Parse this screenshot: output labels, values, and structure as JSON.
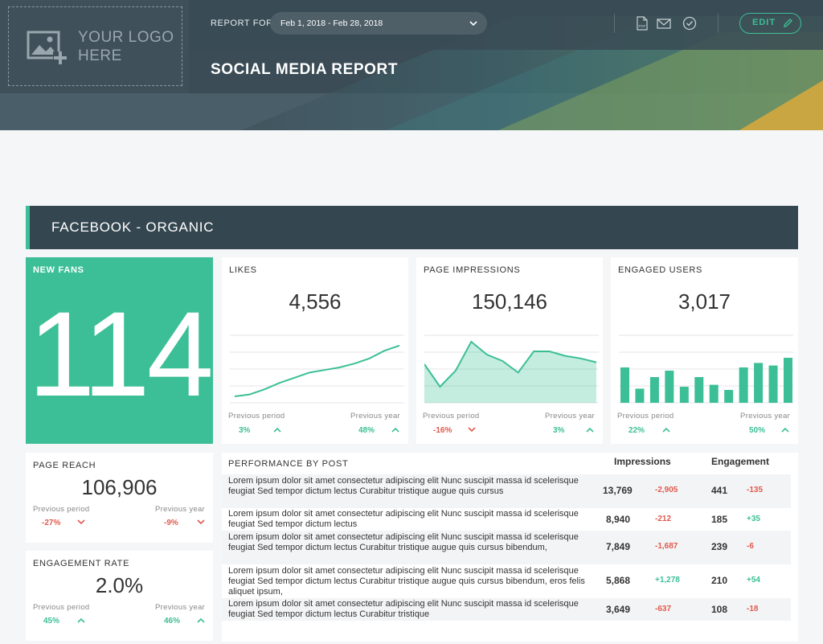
{
  "header": {
    "logo_text_line1": "YOUR LOGO",
    "logo_text_line2": "HERE",
    "report_for_label": "REPORT FOR",
    "date_range": "Feb 1, 2018 - Feb 28, 2018",
    "edit_label": "EDIT",
    "title": "SOCIAL MEDIA REPORT"
  },
  "section": {
    "title": "FACEBOOK - ORGANIC"
  },
  "cards": {
    "new_fans": {
      "label": "NEW FANS",
      "value": "114"
    },
    "likes": {
      "label": "LIKES",
      "value": "4,556",
      "prev_label": "Previous period",
      "prev_value": "3%",
      "year_label": "Previous year",
      "year_value": "48%"
    },
    "impressions": {
      "label": "PAGE IMPRESSIONS",
      "value": "150,146",
      "prev_label": "Previous period",
      "prev_value": "-16%",
      "year_label": "Previous year",
      "year_value": "3%"
    },
    "engaged": {
      "label": "ENGAGED USERS",
      "value": "3,017",
      "prev_label": "Previous period",
      "prev_value": "22%",
      "year_label": "Previous year",
      "year_value": "50%"
    },
    "reach": {
      "label": "PAGE REACH",
      "value": "106,906",
      "prev_label": "Previous period",
      "prev_value": "-27%",
      "year_label": "Previous year",
      "year_value": "-9%"
    },
    "engagement_rate": {
      "label": "ENGAGEMENT RATE",
      "value": "2.0%",
      "prev_label": "Previous period",
      "prev_value": "45%",
      "year_label": "Previous year",
      "year_value": "46%"
    }
  },
  "sparklines": {
    "likes": [
      5,
      8,
      16,
      26,
      34,
      42,
      46,
      50,
      56,
      64,
      76,
      84
    ],
    "impressions": [
      55,
      20,
      45,
      90,
      70,
      60,
      42,
      75,
      75,
      68,
      64,
      58
    ],
    "engaged": [
      55,
      22,
      40,
      50,
      25,
      40,
      28,
      20,
      55,
      62,
      58,
      70
    ]
  },
  "performance": {
    "title": "PERFORMANCE BY POST",
    "col_impressions": "Impressions",
    "col_engagement": "Engagement",
    "rows": [
      {
        "text": "Lorem ipsum dolor sit amet consectetur adipiscing elit Nunc suscipit massa id scelerisque feugiat Sed tempor dictum lectus Curabitur tristique augue quis cursus",
        "impressions": "13,769",
        "imp_delta": "-2,905",
        "engagement": "441",
        "eng_delta": "-135"
      },
      {
        "text": "Lorem ipsum dolor sit amet consectetur adipiscing elit Nunc suscipit massa id scelerisque feugiat Sed tempor dictum lectus",
        "impressions": "8,940",
        "imp_delta": "-212",
        "engagement": "185",
        "eng_delta": "+35"
      },
      {
        "text": "Lorem ipsum dolor sit amet consectetur adipiscing elit Nunc suscipit massa id scelerisque feugiat Sed tempor dictum lectus Curabitur tristique augue quis cursus bibendum,",
        "impressions": "7,849",
        "imp_delta": "-1,687",
        "engagement": "239",
        "eng_delta": "-6"
      },
      {
        "text": "Lorem ipsum dolor sit amet consectetur adipiscing elit Nunc suscipit massa id scelerisque feugiat Sed tempor dictum lectus Curabitur tristique augue quis cursus bibendum, eros felis aliquet ipsum,",
        "impressions": "5,868",
        "imp_delta": "+1,278",
        "engagement": "210",
        "eng_delta": "+54"
      },
      {
        "text": "Lorem ipsum dolor sit amet consectetur adipiscing elit Nunc suscipit massa id scelerisque feugiat Sed tempor dictum lectus Curabitur tristique",
        "impressions": "3,649",
        "imp_delta": "-637",
        "engagement": "108",
        "eng_delta": "-18"
      }
    ]
  }
}
